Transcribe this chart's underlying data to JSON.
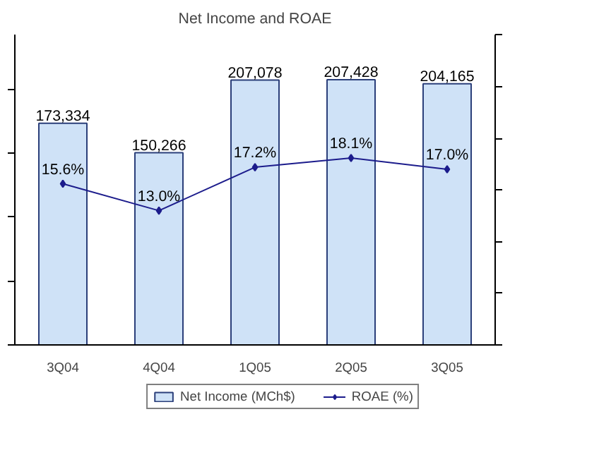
{
  "chart_data": {
    "type": "bar",
    "title": "Net Income and ROAE",
    "categories": [
      "3Q04",
      "4Q04",
      "1Q05",
      "2Q05",
      "3Q05"
    ],
    "series": [
      {
        "name": "Net Income (MCh$)",
        "color": "#cfe2f7",
        "values": [
          173334,
          150266,
          207078,
          207428,
          204165
        ],
        "value_labels": [
          "173,334",
          "150,266",
          "207,078",
          "207,428",
          "204,165"
        ]
      },
      {
        "name": "ROAE (%)",
        "type": "line",
        "axis": "y2",
        "color": "#1c1c8c",
        "values": [
          15.6,
          13.0,
          17.2,
          18.1,
          17.0
        ],
        "value_labels": [
          "15.6%",
          "13.0%",
          "17.2%",
          "18.1%",
          "17.0%"
        ]
      }
    ],
    "tick_labels": "x",
    "marker": "diamond",
    "legend": "bottom",
    "grid": false
  }
}
